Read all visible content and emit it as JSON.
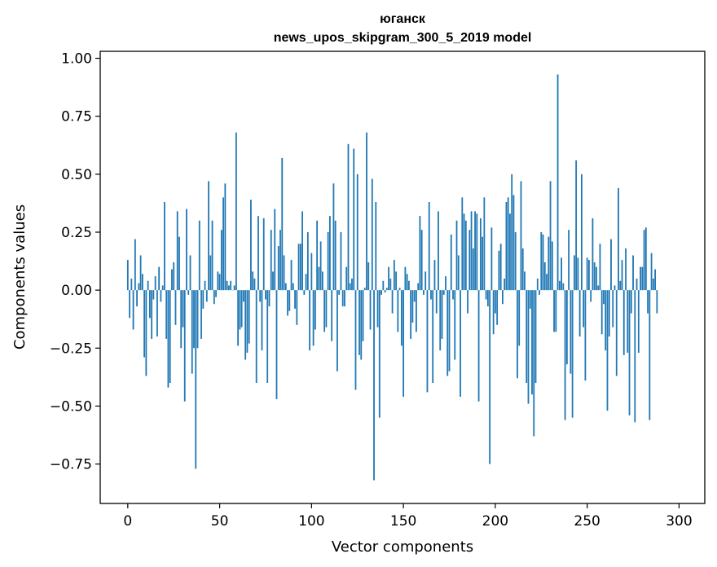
{
  "chart_data": {
    "type": "bar",
    "title_line1": "юганск",
    "title_line2": "news_upos_skipgram_300_5_2019 model",
    "xlabel": "Vector components",
    "ylabel": "Components values",
    "xlim": [
      -15,
      314
    ],
    "ylim": [
      -0.92,
      1.03
    ],
    "x_ticks": [
      0,
      50,
      100,
      150,
      200,
      250,
      300
    ],
    "y_ticks": [
      -0.75,
      -0.5,
      -0.25,
      0.0,
      0.25,
      0.5,
      0.75,
      1.0
    ],
    "y_tick_labels": [
      "−0.75",
      "−0.50",
      "−0.25",
      "0.00",
      "0.25",
      "0.50",
      "0.75",
      "1.00"
    ],
    "bar_color": "#1f77b4",
    "values": [
      0.13,
      -0.12,
      0.05,
      -0.17,
      0.22,
      -0.07,
      0.03,
      0.15,
      0.07,
      -0.29,
      -0.37,
      0.04,
      -0.12,
      -0.21,
      -0.04,
      0.06,
      -0.2,
      0.1,
      -0.05,
      0.02,
      0.38,
      -0.21,
      -0.42,
      -0.4,
      0.09,
      0.12,
      -0.15,
      0.34,
      0.23,
      -0.25,
      -0.16,
      -0.48,
      0.35,
      -0.02,
      0.15,
      -0.36,
      -0.25,
      -0.77,
      -0.25,
      0.3,
      -0.21,
      -0.08,
      0.04,
      -0.05,
      0.47,
      0.15,
      0.3,
      -0.06,
      -0.03,
      0.08,
      0.07,
      0.26,
      0.4,
      0.46,
      0.04,
      0.02,
      0.04,
      0.0,
      0.02,
      0.68,
      -0.24,
      -0.17,
      -0.16,
      -0.05,
      -0.3,
      -0.27,
      -0.23,
      0.39,
      0.08,
      0.05,
      -0.4,
      0.32,
      -0.05,
      -0.26,
      0.31,
      -0.04,
      -0.4,
      -0.07,
      0.26,
      0.08,
      0.35,
      -0.47,
      0.19,
      0.26,
      0.57,
      0.15,
      0.03,
      -0.11,
      -0.09,
      0.13,
      0.03,
      -0.08,
      -0.15,
      0.2,
      0.2,
      0.34,
      -0.02,
      0.07,
      0.25,
      -0.26,
      0.16,
      -0.24,
      -0.17,
      0.3,
      0.1,
      0.21,
      0.08,
      -0.18,
      -0.16,
      0.25,
      0.32,
      -0.22,
      0.46,
      0.3,
      -0.35,
      -0.02,
      0.25,
      -0.07,
      -0.07,
      0.1,
      0.63,
      0.03,
      0.05,
      0.61,
      -0.43,
      0.5,
      -0.28,
      -0.3,
      -0.22,
      0.01,
      0.68,
      0.12,
      -0.17,
      0.48,
      -0.82,
      0.38,
      -0.16,
      -0.55,
      -0.02,
      0.04,
      -0.01,
      0.01,
      0.1,
      0.05,
      -0.1,
      0.13,
      0.08,
      -0.18,
      0.01,
      -0.24,
      -0.46,
      0.1,
      0.07,
      0.04,
      -0.21,
      -0.14,
      -0.05,
      -0.18,
      0.03,
      0.32,
      0.26,
      -0.02,
      0.08,
      -0.44,
      0.38,
      -0.04,
      -0.4,
      0.13,
      -0.1,
      0.34,
      -0.26,
      -0.21,
      -0.02,
      0.06,
      -0.37,
      -0.35,
      0.24,
      -0.04,
      -0.3,
      0.3,
      0.15,
      -0.46,
      0.4,
      0.33,
      0.3,
      -0.1,
      0.26,
      0.34,
      0.18,
      0.34,
      0.33,
      -0.48,
      0.31,
      0.23,
      0.4,
      -0.04,
      -0.07,
      -0.75,
      0.27,
      -0.19,
      -0.1,
      -0.15,
      0.17,
      0.2,
      -0.06,
      0.05,
      0.38,
      0.4,
      0.33,
      0.5,
      0.41,
      0.25,
      -0.38,
      -0.24,
      0.47,
      0.18,
      0.08,
      -0.4,
      -0.49,
      -0.08,
      -0.45,
      -0.63,
      -0.4,
      0.05,
      -0.02,
      0.25,
      0.24,
      0.12,
      0.07,
      0.23,
      0.47,
      0.21,
      -0.18,
      -0.18,
      0.93,
      0.04,
      0.14,
      0.03,
      -0.56,
      -0.32,
      0.26,
      -0.36,
      -0.55,
      0.15,
      0.56,
      0.14,
      -0.2,
      0.5,
      -0.16,
      -0.39,
      0.14,
      0.13,
      -0.05,
      0.31,
      0.12,
      0.1,
      0.02,
      0.2,
      -0.19,
      -0.06,
      -0.26,
      -0.52,
      -0.2,
      0.22,
      -0.16,
      0.02,
      -0.37,
      0.44,
      0.04,
      0.13,
      -0.28,
      0.18,
      -0.27,
      -0.54,
      -0.1,
      0.15,
      -0.57,
      0.05,
      -0.27,
      0.1,
      0.1,
      0.26,
      0.27,
      -0.1,
      -0.56,
      0.16,
      0.05,
      0.09,
      -0.1
    ]
  }
}
